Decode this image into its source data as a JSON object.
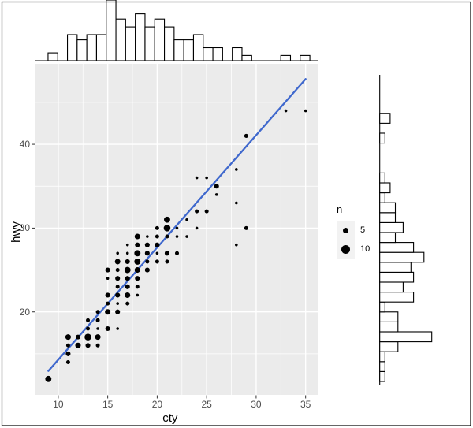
{
  "chart_data": {
    "type": "scatter",
    "title": "",
    "xlabel": "cty",
    "ylabel": "hwy",
    "x_ticks": [
      10,
      15,
      20,
      25,
      30,
      35
    ],
    "x_tick_labels": [
      "10",
      "15",
      "20",
      "25",
      "30",
      "35"
    ],
    "y_ticks": [
      20,
      30,
      40
    ],
    "y_tick_labels": [
      "20",
      "30",
      "40"
    ],
    "x_minor": [
      12.5,
      17.5,
      22.5,
      27.5,
      32.5
    ],
    "y_minor": [
      15,
      25,
      35,
      45
    ],
    "xlim": [
      7.7,
      36.3
    ],
    "ylim": [
      10.1,
      49.6
    ],
    "grid": "on",
    "legend_position": "right",
    "point_fields": [
      "cty",
      "hwy",
      "n"
    ],
    "points": [
      [
        9,
        12,
        5
      ],
      [
        11,
        14,
        2
      ],
      [
        11,
        15,
        3
      ],
      [
        11,
        16,
        2
      ],
      [
        11,
        17,
        4
      ],
      [
        12,
        16,
        4
      ],
      [
        12,
        17,
        3
      ],
      [
        13,
        16,
        3
      ],
      [
        13,
        17,
        6
      ],
      [
        13,
        18,
        2
      ],
      [
        13,
        19,
        2
      ],
      [
        14,
        16,
        2
      ],
      [
        14,
        17,
        4
      ],
      [
        14,
        18,
        1
      ],
      [
        14,
        19,
        2
      ],
      [
        14,
        20,
        2
      ],
      [
        15,
        18,
        3
      ],
      [
        15,
        20,
        4
      ],
      [
        15,
        21,
        2
      ],
      [
        15,
        22,
        3
      ],
      [
        15,
        24,
        1
      ],
      [
        15,
        25,
        3
      ],
      [
        16,
        18,
        1
      ],
      [
        16,
        20,
        3
      ],
      [
        16,
        21,
        1
      ],
      [
        16,
        22,
        3
      ],
      [
        16,
        23,
        2
      ],
      [
        16,
        24,
        3
      ],
      [
        16,
        25,
        2
      ],
      [
        16,
        26,
        4
      ],
      [
        16,
        27,
        1
      ],
      [
        17,
        21,
        2
      ],
      [
        17,
        22,
        4
      ],
      [
        17,
        23,
        3
      ],
      [
        17,
        24,
        3
      ],
      [
        17,
        25,
        5
      ],
      [
        17,
        26,
        3
      ],
      [
        17,
        27,
        1
      ],
      [
        17,
        28,
        1
      ],
      [
        18,
        22,
        1
      ],
      [
        18,
        23,
        2
      ],
      [
        18,
        24,
        3
      ],
      [
        18,
        25,
        4
      ],
      [
        18,
        26,
        5
      ],
      [
        18,
        27,
        5
      ],
      [
        18,
        28,
        3
      ],
      [
        18,
        29,
        4
      ],
      [
        19,
        25,
        3
      ],
      [
        19,
        26,
        2
      ],
      [
        19,
        27,
        3
      ],
      [
        19,
        28,
        3
      ],
      [
        19,
        29,
        1
      ],
      [
        20,
        26,
        2
      ],
      [
        20,
        27,
        1
      ],
      [
        20,
        28,
        3
      ],
      [
        20,
        29,
        2
      ],
      [
        20,
        30,
        2
      ],
      [
        21,
        26,
        2
      ],
      [
        21,
        27,
        3
      ],
      [
        21,
        29,
        2
      ],
      [
        21,
        30,
        6
      ],
      [
        21,
        31,
        5
      ],
      [
        22,
        27,
        2
      ],
      [
        22,
        29,
        1
      ],
      [
        22,
        30,
        1
      ],
      [
        23,
        29,
        1
      ],
      [
        23,
        31,
        1
      ],
      [
        24,
        30,
        1
      ],
      [
        24,
        32,
        2
      ],
      [
        24,
        36,
        1
      ],
      [
        25,
        32,
        2
      ],
      [
        25,
        36,
        1
      ],
      [
        26,
        34,
        1
      ],
      [
        26,
        35,
        3
      ],
      [
        28,
        28,
        1
      ],
      [
        28,
        33,
        1
      ],
      [
        28,
        37,
        1
      ],
      [
        29,
        30,
        2
      ],
      [
        29,
        41,
        2
      ],
      [
        33,
        44,
        1
      ],
      [
        35,
        44,
        1
      ]
    ],
    "smooth_line": {
      "method": "lm",
      "intercept": 0.89,
      "slope": 1.34,
      "x_start": 9,
      "x_end": 35
    },
    "size_legend": {
      "title": "n",
      "entries": [
        {
          "label": "5",
          "n": 5
        },
        {
          "label": "10",
          "n": 10
        }
      ]
    },
    "marginal_top": {
      "variable": "cty",
      "bin_start": 8.97,
      "bin_width": 0.98,
      "counts": [
        3,
        0,
        10,
        8,
        10,
        10,
        26,
        16,
        13,
        18,
        13,
        16,
        13,
        8,
        8,
        10,
        5,
        5,
        0,
        5,
        2,
        0,
        0,
        0,
        2,
        0,
        2
      ]
    },
    "marginal_right": {
      "variable": "hwy",
      "bin_start": 11.7,
      "bin_width": 1.185,
      "counts": [
        2,
        2,
        2,
        7,
        20,
        7,
        7,
        2,
        13,
        9,
        13,
        12,
        17,
        13,
        6,
        9,
        6,
        6,
        2,
        4,
        2,
        0,
        0,
        0,
        2,
        0,
        4
      ]
    },
    "colors": {
      "panel_bg": "#EBEBEB",
      "grid": "#FFFFFF",
      "point": "#000000",
      "smooth_line": "#3F68CD",
      "hist_fill": "#FFFFFF",
      "hist_stroke": "#000000",
      "tick_label": "#4D4D4D",
      "axis_title": "#000000",
      "legend_key_bg": "#F2F2F2",
      "border": "#000000",
      "background": "#FFFFFF"
    }
  }
}
